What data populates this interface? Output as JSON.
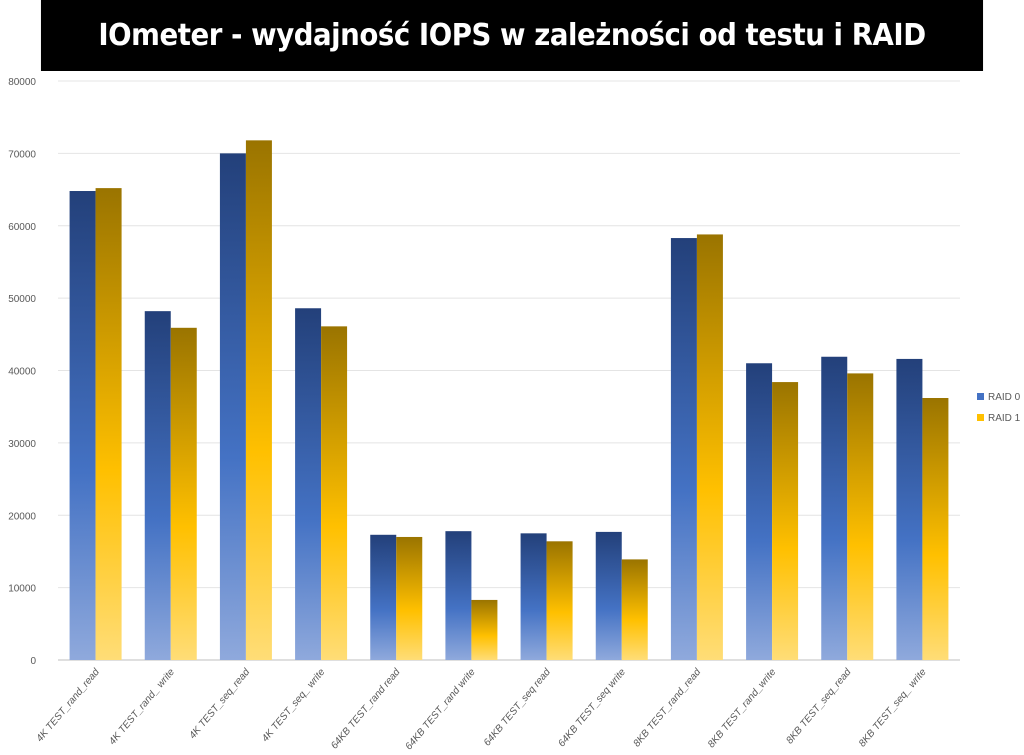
{
  "chart_data": {
    "type": "bar",
    "title": "IOmeter - wydajność IOPS w zależności od testu i RAID",
    "categories": [
      "4K TEST_rand_read",
      "4K TEST_rand_ write",
      "4K TEST_seq_read",
      "4K TEST_seq_ write",
      "64KB TEST_rand read",
      "64KB TEST_rand write",
      "64KB TEST_seq read",
      "64KB TEST_seq write",
      "8KB TEST_rand_read",
      "8KB TEST_rand_write",
      "8KB TEST_seq_read",
      "8KB TEST_seq_ write"
    ],
    "series": [
      {
        "name": "RAID 0",
        "values": [
          64800,
          48200,
          70000,
          48600,
          17300,
          17800,
          17500,
          17700,
          58300,
          41000,
          41900,
          41600
        ],
        "color": "#2f4f8f"
      },
      {
        "name": "RAID 1",
        "values": [
          65200,
          45900,
          71800,
          46100,
          17000,
          8300,
          16400,
          13900,
          58800,
          38400,
          39600,
          36200
        ],
        "color": "#c9a000"
      }
    ],
    "ylim": [
      0,
      80000
    ],
    "yticks": [
      0,
      10000,
      20000,
      30000,
      40000,
      50000,
      60000,
      70000,
      80000
    ],
    "grid": true,
    "legend_position": "right",
    "xlabel": "",
    "ylabel": ""
  }
}
